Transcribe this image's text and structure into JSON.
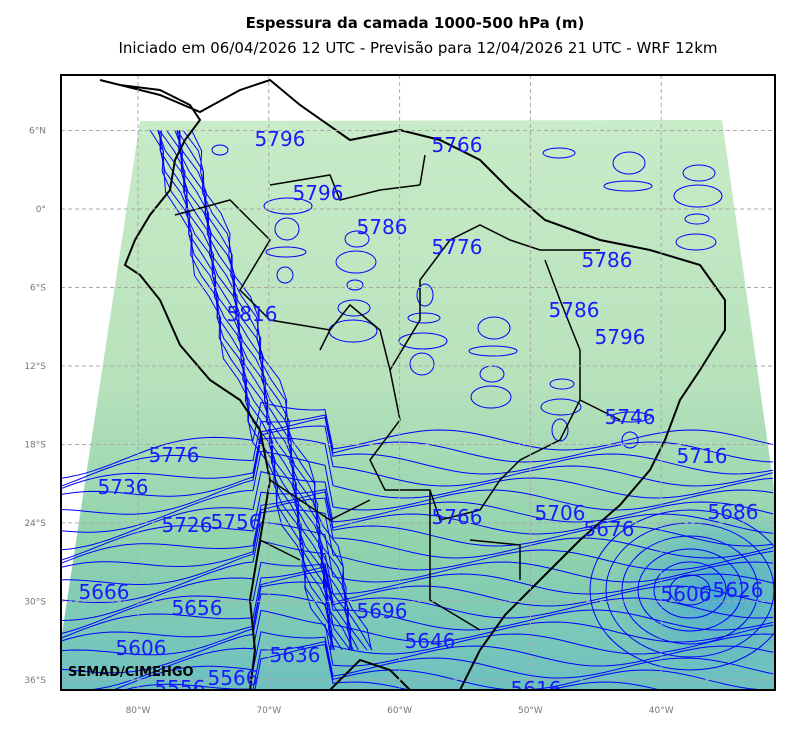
{
  "header": {
    "title": "Espessura da camada 1000-500 hPa (m)",
    "subtitle": "Iniciado em 06/04/2026 12 UTC - Previsão para 12/04/2026 21 UTC - WRF 12km"
  },
  "map": {
    "lat_ticks": [
      {
        "value": 6,
        "label": "6°N"
      },
      {
        "value": 0,
        "label": "0°"
      },
      {
        "value": -6,
        "label": "6°S"
      },
      {
        "value": -12,
        "label": "12°S"
      },
      {
        "value": -18,
        "label": "18°S"
      },
      {
        "value": -24,
        "label": "24°S"
      },
      {
        "value": -30,
        "label": "30°S"
      },
      {
        "value": -36,
        "label": "36°S"
      }
    ],
    "lon_ticks": [
      {
        "value": -80,
        "label": "80°W"
      },
      {
        "value": -70,
        "label": "70°W"
      },
      {
        "value": -60,
        "label": "60°W"
      },
      {
        "value": -50,
        "label": "50°W"
      },
      {
        "value": -40,
        "label": "40°W"
      }
    ],
    "contour_labels": [
      "5796",
      "5766",
      "5796",
      "5786",
      "5776",
      "5786",
      "5816",
      "5786",
      "5796",
      "5746",
      "5716",
      "5776",
      "5736",
      "5726",
      "5756",
      "5766",
      "5706",
      "5676",
      "5686",
      "5666",
      "5656",
      "5696",
      "5646",
      "5606",
      "5626",
      "5606",
      "5636",
      "5566",
      "5556",
      "5616"
    ],
    "credit": "SEMAD/CIMEHGO"
  }
}
